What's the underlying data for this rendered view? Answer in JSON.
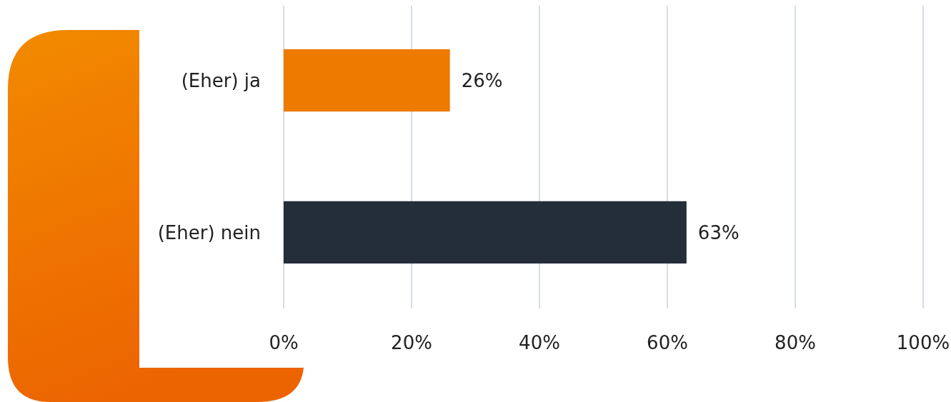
{
  "chart_data": {
    "type": "bar",
    "orientation": "horizontal",
    "categories": [
      "(Eher) ja",
      "(Eher) nein"
    ],
    "values": [
      26,
      63
    ],
    "colors": [
      "#ee7a00",
      "#232e39"
    ],
    "value_labels": [
      "26%",
      "63%"
    ],
    "xlim": [
      0,
      100
    ],
    "xticks": [
      {
        "value": 0,
        "label": "0%"
      },
      {
        "value": 20,
        "label": "20%"
      },
      {
        "value": 40,
        "label": "40%"
      },
      {
        "value": 60,
        "label": "60%"
      },
      {
        "value": 80,
        "label": "80%"
      },
      {
        "value": 100,
        "label": "100%"
      }
    ],
    "grid": "x"
  }
}
